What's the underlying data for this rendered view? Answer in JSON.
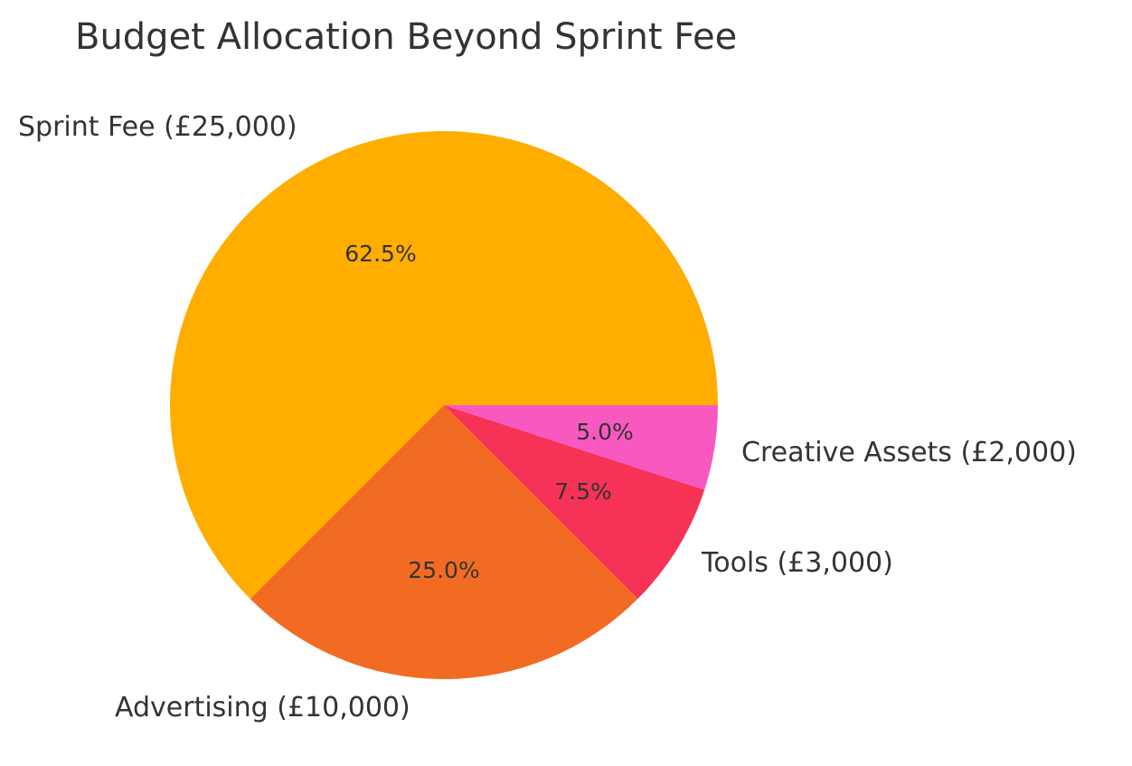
{
  "chart_data": {
    "type": "pie",
    "title": "Budget Allocation Beyond Sprint Fee",
    "categories": [
      "Sprint Fee (£25,000)",
      "Advertising (£10,000)",
      "Tools (£3,000)",
      "Creative Assets (£2,000)"
    ],
    "values": [
      25000,
      10000,
      3000,
      2000
    ],
    "percent_labels": [
      "62.5%",
      "25.0%",
      "7.5%",
      "5.0%"
    ],
    "colors": [
      "#FFAE00",
      "#F26B22",
      "#F63256",
      "#F859C1"
    ],
    "start_angle": 0,
    "direction": "counterclockwise",
    "legend": "none"
  },
  "slices": [
    {
      "label": "Sprint Fee (£25,000)",
      "pct": "62.5%"
    },
    {
      "label": "Advertising (£10,000)",
      "pct": "25.0%"
    },
    {
      "label": "Tools (£3,000)",
      "pct": "7.5%"
    },
    {
      "label": "Creative Assets (£2,000)",
      "pct": "5.0%"
    }
  ]
}
